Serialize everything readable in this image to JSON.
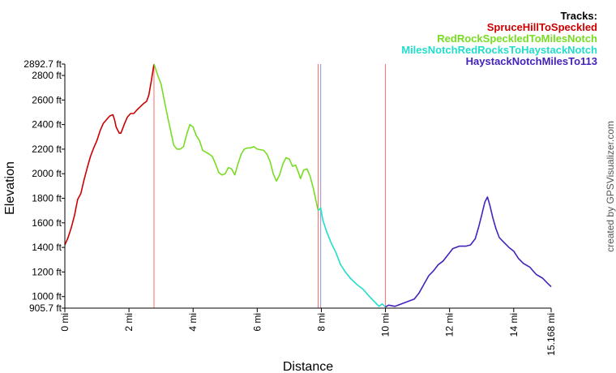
{
  "chart_data": {
    "type": "line",
    "xlabel": "Distance",
    "ylabel": "Elevation",
    "legend_title": "Tracks:",
    "legend_position": "top-right",
    "credit": "created by GPSVisualizer.com",
    "xlim": [
      0,
      15.168
    ],
    "ylim": [
      905.7,
      2892.7
    ],
    "x_ticks": [
      {
        "value": 0,
        "label": "0 mi"
      },
      {
        "value": 2,
        "label": "2 mi"
      },
      {
        "value": 4,
        "label": "4 mi"
      },
      {
        "value": 6,
        "label": "6 mi"
      },
      {
        "value": 8,
        "label": "8 mi"
      },
      {
        "value": 10,
        "label": "10 mi"
      },
      {
        "value": 12,
        "label": "12 mi"
      },
      {
        "value": 14,
        "label": "14 mi"
      },
      {
        "value": 15.168,
        "label": "15.168 mi"
      }
    ],
    "y_ticks": [
      {
        "value": 905.7,
        "label": "905.7 ft"
      },
      {
        "value": 1000,
        "label": "1000 ft"
      },
      {
        "value": 1200,
        "label": "1200 ft"
      },
      {
        "value": 1400,
        "label": "1400 ft"
      },
      {
        "value": 1600,
        "label": "1600 ft"
      },
      {
        "value": 1800,
        "label": "1800 ft"
      },
      {
        "value": 2000,
        "label": "2000 ft"
      },
      {
        "value": 2200,
        "label": "2200 ft"
      },
      {
        "value": 2400,
        "label": "2400 ft"
      },
      {
        "value": 2600,
        "label": "2600 ft"
      },
      {
        "value": 2800,
        "label": "2800 ft"
      },
      {
        "value": 2892.7,
        "label": "2892.7 ft"
      }
    ],
    "track_boundaries": [
      {
        "x": 2.78,
        "color": "#ff6b6b"
      },
      {
        "x": 7.9,
        "color": "#ff6b6b"
      },
      {
        "x": 7.98,
        "color": "#9c8cc4"
      },
      {
        "x": 10.0,
        "color": "#ff6b6b"
      }
    ],
    "series": [
      {
        "name": "SpruceHillToSpeckled",
        "color": "#cc0000",
        "points": [
          [
            0,
            1420
          ],
          [
            0.1,
            1480
          ],
          [
            0.2,
            1560
          ],
          [
            0.3,
            1660
          ],
          [
            0.4,
            1790
          ],
          [
            0.5,
            1840
          ],
          [
            0.6,
            1950
          ],
          [
            0.7,
            2050
          ],
          [
            0.8,
            2140
          ],
          [
            0.9,
            2210
          ],
          [
            1.0,
            2270
          ],
          [
            1.1,
            2350
          ],
          [
            1.2,
            2410
          ],
          [
            1.3,
            2440
          ],
          [
            1.4,
            2470
          ],
          [
            1.5,
            2480
          ],
          [
            1.55,
            2440
          ],
          [
            1.6,
            2380
          ],
          [
            1.7,
            2330
          ],
          [
            1.75,
            2330
          ],
          [
            1.85,
            2400
          ],
          [
            1.95,
            2460
          ],
          [
            2.05,
            2490
          ],
          [
            2.15,
            2490
          ],
          [
            2.25,
            2520
          ],
          [
            2.35,
            2545
          ],
          [
            2.45,
            2570
          ],
          [
            2.55,
            2590
          ],
          [
            2.62,
            2640
          ],
          [
            2.7,
            2760
          ],
          [
            2.78,
            2892.7
          ]
        ]
      },
      {
        "name": "RedRockSpeckledToMilesNotch",
        "color": "#77dd22",
        "points": [
          [
            2.78,
            2892.7
          ],
          [
            2.9,
            2800
          ],
          [
            3.0,
            2730
          ],
          [
            3.1,
            2600
          ],
          [
            3.2,
            2470
          ],
          [
            3.3,
            2350
          ],
          [
            3.4,
            2230
          ],
          [
            3.5,
            2200
          ],
          [
            3.6,
            2200
          ],
          [
            3.7,
            2220
          ],
          [
            3.8,
            2320
          ],
          [
            3.9,
            2400
          ],
          [
            4.0,
            2380
          ],
          [
            4.1,
            2310
          ],
          [
            4.2,
            2270
          ],
          [
            4.3,
            2190
          ],
          [
            4.5,
            2160
          ],
          [
            4.6,
            2140
          ],
          [
            4.7,
            2080
          ],
          [
            4.8,
            2010
          ],
          [
            4.9,
            1990
          ],
          [
            5.0,
            2000
          ],
          [
            5.1,
            2050
          ],
          [
            5.2,
            2040
          ],
          [
            5.3,
            1990
          ],
          [
            5.4,
            2080
          ],
          [
            5.5,
            2160
          ],
          [
            5.6,
            2200
          ],
          [
            5.7,
            2210
          ],
          [
            5.8,
            2210
          ],
          [
            5.9,
            2220
          ],
          [
            6.0,
            2200
          ],
          [
            6.2,
            2190
          ],
          [
            6.3,
            2160
          ],
          [
            6.4,
            2100
          ],
          [
            6.5,
            2000
          ],
          [
            6.6,
            1940
          ],
          [
            6.7,
            1990
          ],
          [
            6.8,
            2080
          ],
          [
            6.9,
            2130
          ],
          [
            7.0,
            2120
          ],
          [
            7.1,
            2060
          ],
          [
            7.2,
            2070
          ],
          [
            7.3,
            2000
          ],
          [
            7.35,
            1960
          ],
          [
            7.45,
            2030
          ],
          [
            7.55,
            2040
          ],
          [
            7.65,
            1980
          ],
          [
            7.75,
            1880
          ],
          [
            7.85,
            1760
          ],
          [
            7.9,
            1700
          ]
        ]
      },
      {
        "name": "MilesNotchRedRocksToHaystackNotch",
        "color": "#22ddcc",
        "points": [
          [
            7.9,
            1700
          ],
          [
            7.98,
            1720
          ],
          [
            8.05,
            1620
          ],
          [
            8.15,
            1540
          ],
          [
            8.3,
            1440
          ],
          [
            8.45,
            1360
          ],
          [
            8.6,
            1260
          ],
          [
            8.75,
            1200
          ],
          [
            8.9,
            1150
          ],
          [
            9.1,
            1100
          ],
          [
            9.3,
            1060
          ],
          [
            9.5,
            1000
          ],
          [
            9.65,
            960
          ],
          [
            9.8,
            920
          ],
          [
            9.9,
            940
          ],
          [
            10.0,
            915
          ]
        ]
      },
      {
        "name": "HaystackNotchMilesTo113",
        "color": "#4422bb",
        "points": [
          [
            10.0,
            915
          ],
          [
            10.1,
            930
          ],
          [
            10.3,
            920
          ],
          [
            10.5,
            940
          ],
          [
            10.7,
            960
          ],
          [
            10.9,
            980
          ],
          [
            11.05,
            1030
          ],
          [
            11.2,
            1100
          ],
          [
            11.35,
            1170
          ],
          [
            11.5,
            1210
          ],
          [
            11.65,
            1260
          ],
          [
            11.8,
            1290
          ],
          [
            11.95,
            1340
          ],
          [
            12.1,
            1390
          ],
          [
            12.3,
            1410
          ],
          [
            12.5,
            1410
          ],
          [
            12.65,
            1420
          ],
          [
            12.8,
            1470
          ],
          [
            12.9,
            1560
          ],
          [
            13.0,
            1660
          ],
          [
            13.1,
            1770
          ],
          [
            13.18,
            1810
          ],
          [
            13.25,
            1750
          ],
          [
            13.35,
            1640
          ],
          [
            13.45,
            1550
          ],
          [
            13.55,
            1480
          ],
          [
            13.7,
            1440
          ],
          [
            13.85,
            1400
          ],
          [
            14.0,
            1370
          ],
          [
            14.15,
            1310
          ],
          [
            14.3,
            1270
          ],
          [
            14.5,
            1240
          ],
          [
            14.7,
            1180
          ],
          [
            14.9,
            1150
          ],
          [
            15.05,
            1110
          ],
          [
            15.168,
            1080
          ]
        ]
      }
    ]
  }
}
